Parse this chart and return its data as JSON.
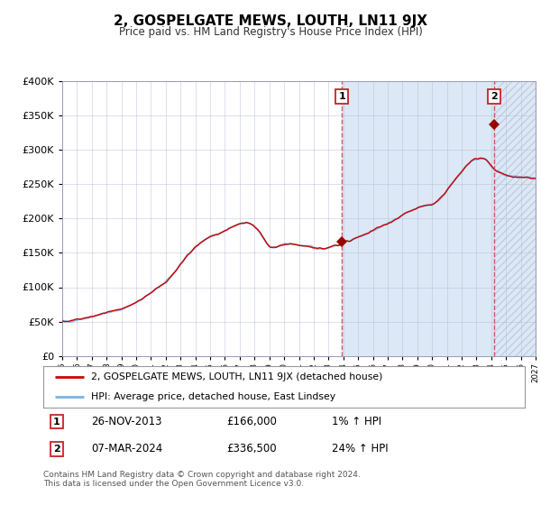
{
  "title": "2, GOSPELGATE MEWS, LOUTH, LN11 9JX",
  "subtitle": "Price paid vs. HM Land Registry's House Price Index (HPI)",
  "legend_line1": "2, GOSPELGATE MEWS, LOUTH, LN11 9JX (detached house)",
  "legend_line2": "HPI: Average price, detached house, East Lindsey",
  "annotation1_date": "26-NOV-2013",
  "annotation1_price": "£166,000",
  "annotation1_hpi": "1% ↑ HPI",
  "annotation2_date": "07-MAR-2024",
  "annotation2_price": "£336,500",
  "annotation2_hpi": "24% ↑ HPI",
  "footnote": "Contains HM Land Registry data © Crown copyright and database right 2024.\nThis data is licensed under the Open Government Licence v3.0.",
  "sale1_year": 2013.9,
  "sale1_value": 166000,
  "sale2_year": 2024.18,
  "sale2_value": 336500,
  "hpi_line_color": "#7ab3e0",
  "sale_line_color": "#cc0000",
  "marker_color": "#990000",
  "bg_shaded_color": "#dce8f5",
  "grid_color": "#b0b8d0",
  "ylim_max": 400000,
  "ylim_min": 0,
  "xmin": 1995,
  "xmax": 2027
}
